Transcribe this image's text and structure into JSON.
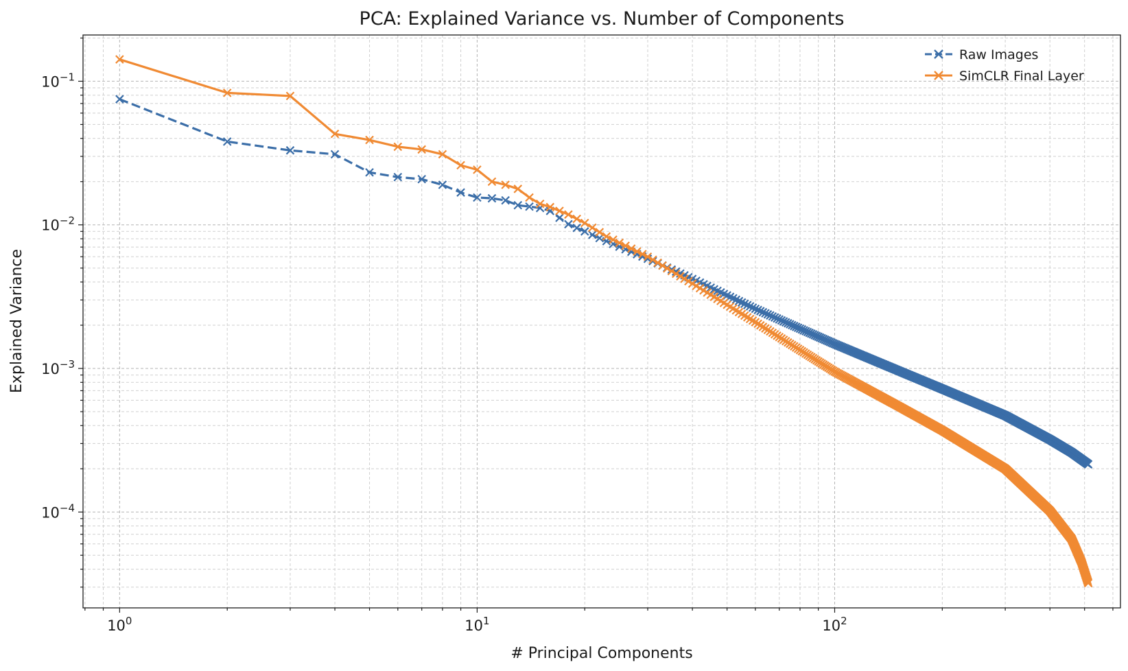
{
  "chart_data": {
    "type": "line",
    "title": "PCA: Explained Variance vs. Number of Components",
    "xlabel": "# Principal Components",
    "ylabel": "Explained Variance",
    "xscale": "log",
    "yscale": "log",
    "xlim": [
      0.79,
      630
    ],
    "ylim": [
      2.15e-05,
      0.21
    ],
    "x_ticks": [
      {
        "base": "10",
        "exp": "0",
        "value": 1
      },
      {
        "base": "10",
        "exp": "1",
        "value": 10
      },
      {
        "base": "10",
        "exp": "2",
        "value": 100
      }
    ],
    "y_ticks": [
      {
        "base": "10",
        "exp": "−1",
        "value": 0.1
      },
      {
        "base": "10",
        "exp": "−2",
        "value": 0.01
      },
      {
        "base": "10",
        "exp": "−3",
        "value": 0.001
      },
      {
        "base": "10",
        "exp": "−4",
        "value": 0.0001
      }
    ],
    "grid": true,
    "legend_position": "top-right",
    "n_components": 512,
    "series": [
      {
        "name": "Raw Images",
        "color": "#3b6ea8",
        "line_style": "dashed",
        "marker": "x",
        "anchors": [
          [
            1,
            0.075
          ],
          [
            2,
            0.038
          ],
          [
            3,
            0.033
          ],
          [
            4,
            0.031
          ],
          [
            5,
            0.0232
          ],
          [
            6,
            0.0215
          ],
          [
            7,
            0.0208
          ],
          [
            8,
            0.019
          ],
          [
            9,
            0.0168
          ],
          [
            10,
            0.0155
          ],
          [
            11,
            0.0153
          ],
          [
            12,
            0.0148
          ],
          [
            13,
            0.0137
          ],
          [
            14,
            0.0134
          ],
          [
            15,
            0.0131
          ],
          [
            16,
            0.0125
          ],
          [
            18,
            0.0101
          ],
          [
            20,
            0.009
          ],
          [
            23,
            0.0077
          ],
          [
            30,
            0.0058
          ],
          [
            40,
            0.0042
          ],
          [
            60,
            0.0026
          ],
          [
            100,
            0.00148
          ],
          [
            150,
            0.00097
          ],
          [
            200,
            0.00072
          ],
          [
            300,
            0.00047
          ],
          [
            400,
            0.00032
          ],
          [
            460,
            0.00026
          ],
          [
            512,
            0.000215
          ]
        ]
      },
      {
        "name": "SimCLR Final Layer",
        "color": "#f08a33",
        "line_style": "solid",
        "marker": "x",
        "anchors": [
          [
            1,
            0.142
          ],
          [
            2,
            0.083
          ],
          [
            3,
            0.079
          ],
          [
            4,
            0.043
          ],
          [
            5,
            0.039
          ],
          [
            6,
            0.035
          ],
          [
            7,
            0.0335
          ],
          [
            8,
            0.031
          ],
          [
            9,
            0.026
          ],
          [
            10,
            0.0242
          ],
          [
            11,
            0.02
          ],
          [
            12,
            0.019
          ],
          [
            13,
            0.0178
          ],
          [
            14,
            0.0155
          ],
          [
            15,
            0.014
          ],
          [
            16,
            0.0133
          ],
          [
            18,
            0.0118
          ],
          [
            20,
            0.0103
          ],
          [
            23,
            0.0083
          ],
          [
            30,
            0.006
          ],
          [
            40,
            0.0039
          ],
          [
            60,
            0.0021
          ],
          [
            100,
            0.00095
          ],
          [
            150,
            0.00055
          ],
          [
            200,
            0.00037
          ],
          [
            300,
            0.0002
          ],
          [
            400,
            0.000102
          ],
          [
            460,
            6.5e-05
          ],
          [
            490,
            4.5e-05
          ],
          [
            512,
            3.2e-05
          ]
        ]
      }
    ]
  }
}
